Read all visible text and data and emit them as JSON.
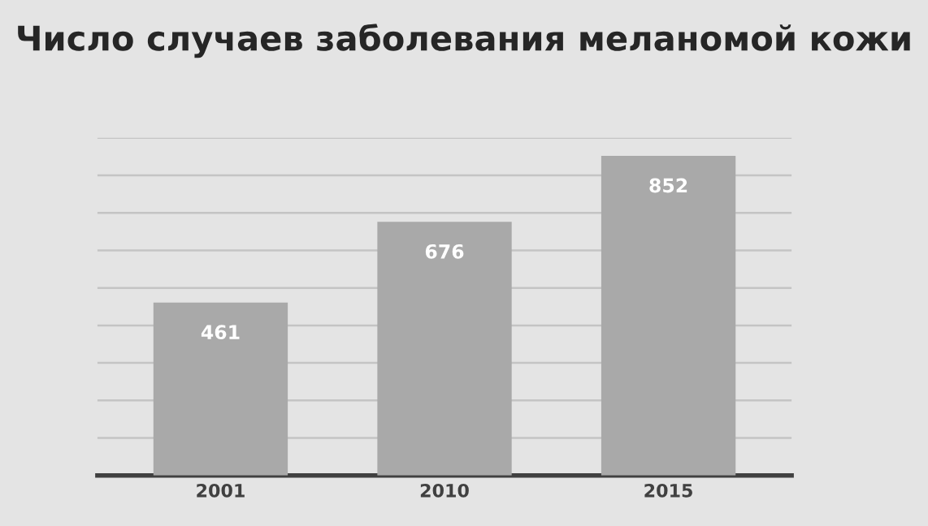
{
  "chart_data": {
    "type": "bar",
    "title": "Число случаев заболевания меланомой кожи",
    "categories": [
      "2001",
      "2010",
      "2015"
    ],
    "values": [
      461,
      676,
      852
    ],
    "color": "#a9a9a9",
    "ylim": [
      0,
      900
    ],
    "yticks": [
      {
        "value": 0,
        "label": null
      },
      {
        "value": 100,
        "label": null
      },
      {
        "value": 200,
        "label": null
      },
      {
        "value": 300,
        "label": null
      },
      {
        "value": 400,
        "label": null
      },
      {
        "value": 500,
        "label": null
      },
      {
        "value": 600,
        "label": null
      },
      {
        "value": 700,
        "label": null
      },
      {
        "value": 800,
        "label": null
      },
      {
        "value": 900,
        "label": null
      }
    ],
    "grid": "y",
    "tick_labels": "x",
    "data_labels": true
  }
}
